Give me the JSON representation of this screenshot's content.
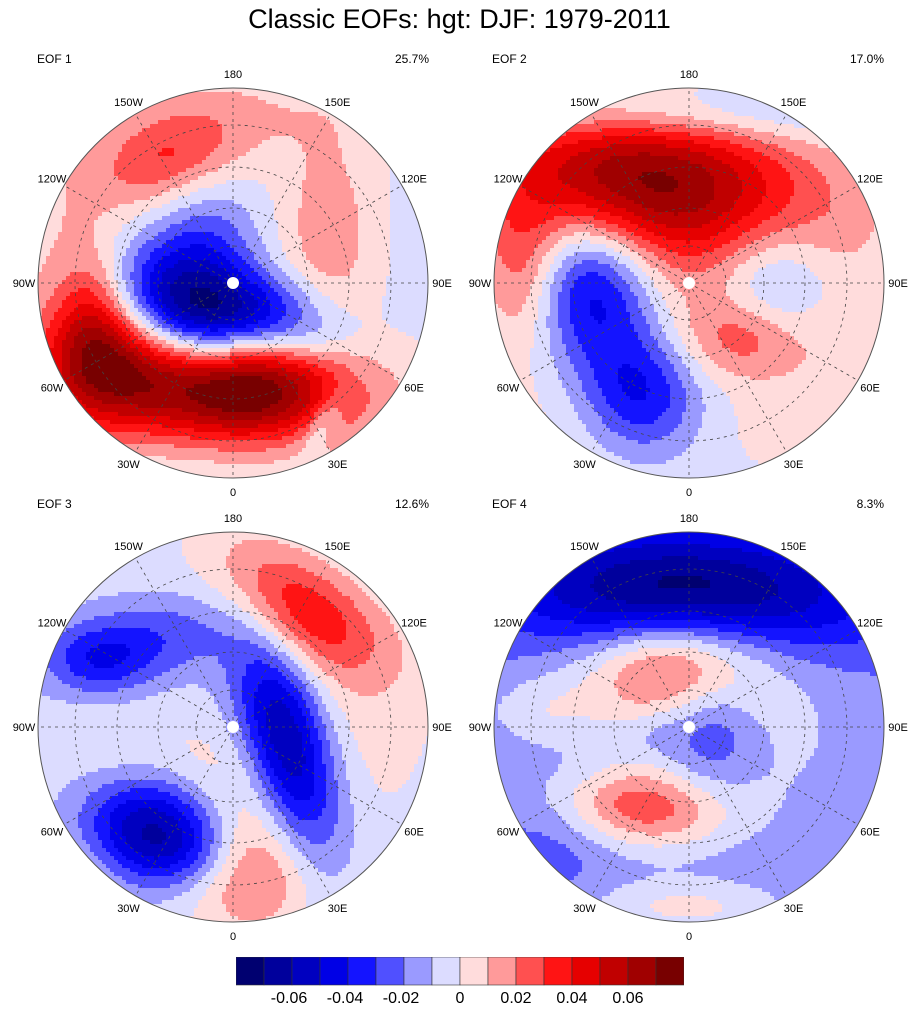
{
  "title": "Classic EOFs: hgt: DJF: 1979-2011",
  "chart_data": {
    "type": "heatmap",
    "projection": "north-polar-stereographic",
    "title": "Classic EOFs: hgt: DJF: 1979-2011",
    "variable": "hgt",
    "season": "DJF",
    "years": "1979-2011",
    "panels": [
      {
        "label": "EOF 1",
        "variance_pct": "25.7%",
        "min_value": -0.065,
        "max_value": 0.05
      },
      {
        "label": "EOF 2",
        "variance_pct": "17.0%",
        "min_value": -0.045,
        "max_value": 0.07
      },
      {
        "label": "EOF 3",
        "variance_pct": "12.6%",
        "min_value": -0.065,
        "max_value": 0.035
      },
      {
        "label": "EOF 4",
        "variance_pct": "8.3%",
        "min_value": -0.045,
        "max_value": 0.045
      }
    ],
    "longitude_labels": [
      "180",
      "150E",
      "120E",
      "90E",
      "60E",
      "30E",
      "0",
      "30W",
      "60W",
      "90W",
      "120W",
      "150W"
    ],
    "colorbar": {
      "levels": [
        -0.07,
        -0.06,
        -0.05,
        -0.04,
        -0.03,
        -0.02,
        -0.01,
        0,
        0.01,
        0.02,
        0.03,
        0.04,
        0.05,
        0.06,
        0.07
      ],
      "tick_labels": [
        "-0.06",
        "-0.04",
        "-0.02",
        "0",
        "0.02",
        "0.04",
        "0.06"
      ],
      "tick_values": [
        -0.06,
        -0.04,
        -0.02,
        0,
        0.02,
        0.04,
        0.06
      ],
      "colors": [
        "#000070",
        "#00009c",
        "#0000c0",
        "#0000e6",
        "#1414ff",
        "#5050ff",
        "#9a9aff",
        "#dcdcff",
        "#ffdcdc",
        "#ff9a9a",
        "#ff5050",
        "#ff1414",
        "#e60000",
        "#c00000",
        "#a00000",
        "#780000"
      ],
      "placement": "bottom"
    },
    "grid": true
  }
}
